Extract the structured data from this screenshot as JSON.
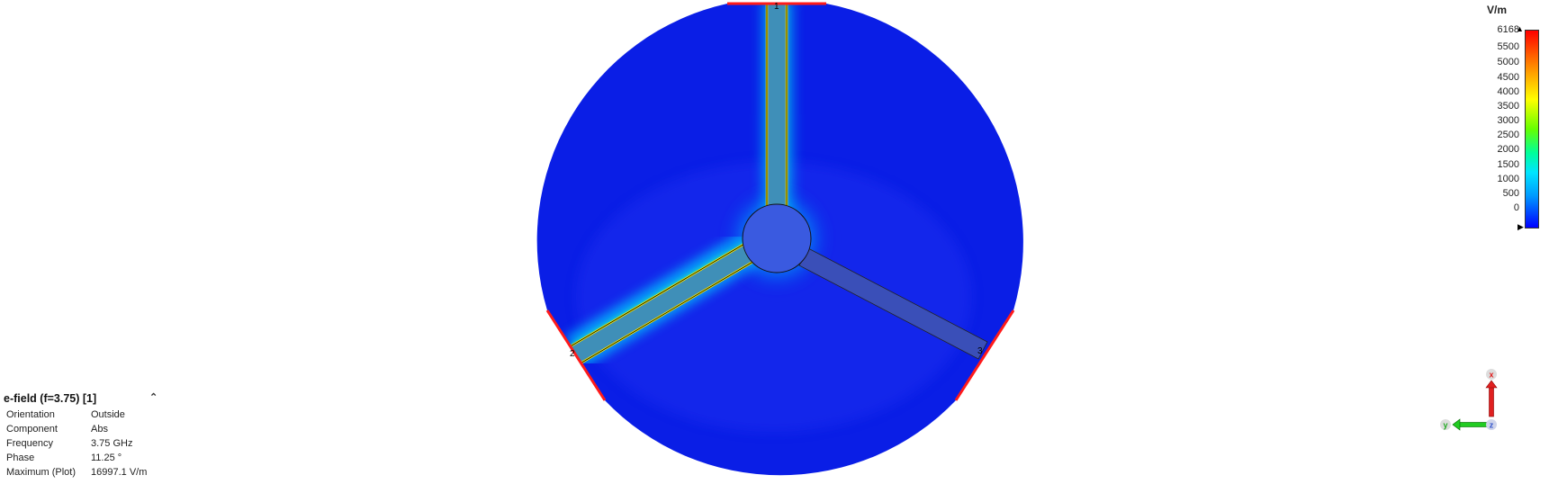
{
  "legend": {
    "unit": "V/m",
    "ticks": [
      "6168",
      "5500",
      "5000",
      "4500",
      "4000",
      "3500",
      "3000",
      "2500",
      "2000",
      "1500",
      "1000",
      "500",
      "0"
    ],
    "max_value": 6168,
    "min_value": 0
  },
  "info": {
    "title": "e-field (f=3.75) [1]",
    "rows": [
      {
        "key": "Orientation",
        "value": "Outside"
      },
      {
        "key": "Component",
        "value": "Abs"
      },
      {
        "key": "Frequency",
        "value": "3.75 GHz"
      },
      {
        "key": "Phase",
        "value": "11.25 °"
      },
      {
        "key": "Maximum (Plot)",
        "value": "16997.1 V/m"
      }
    ]
  },
  "axes": {
    "x_label": "x",
    "y_label": "y",
    "z_label": "z",
    "x_color": "#e02020",
    "y_color": "#22bb22",
    "z_color": "#3355cc"
  },
  "colors": {
    "field_background": "#0a1ee6",
    "center_disk": "#3a5ae0",
    "port_edge": "#ff1a1a"
  },
  "ports": {
    "top_label": "1",
    "left_label": "2",
    "right_label": "3"
  }
}
